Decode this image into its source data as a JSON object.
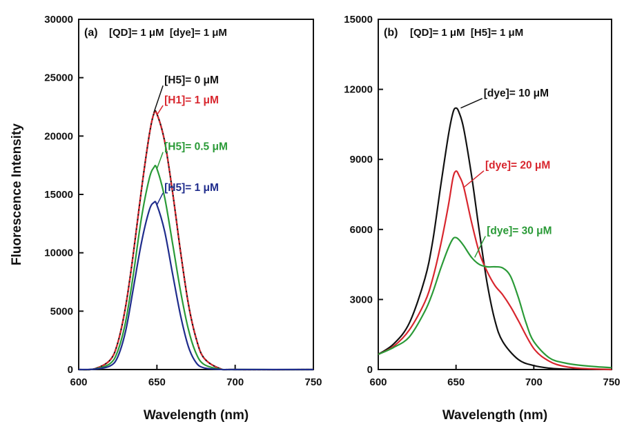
{
  "chart_data": [
    {
      "type": "line",
      "panel_label": "(a)",
      "condition": "[QD]= 1 μM  [dye]= 1 μM",
      "xlabel": "Wavelength (nm)",
      "ylabel": "Fluorescence Intensity",
      "xlim": [
        600,
        750
      ],
      "ylim": [
        0,
        30000
      ],
      "xticks": [
        "600",
        "650",
        "700",
        "750"
      ],
      "yticks": [
        "0",
        "5000",
        "10000",
        "15000",
        "20000",
        "25000",
        "30000"
      ],
      "grid": false,
      "series": [
        {
          "name": "[H5]= 0 μM",
          "color": "#111111",
          "x": [
            600,
            610,
            620,
            625,
            630,
            635,
            640,
            645,
            648,
            650,
            655,
            660,
            665,
            670,
            675,
            680,
            690,
            700,
            750
          ],
          "y": [
            0,
            60,
            800,
            2300,
            5400,
            10000,
            15300,
            20000,
            21900,
            21900,
            19500,
            15200,
            10200,
            5700,
            2700,
            1000,
            100,
            0,
            0
          ]
        },
        {
          "name": "[H1]= 1 μM",
          "color": "#d8262e",
          "x": [
            600,
            610,
            620,
            625,
            630,
            635,
            640,
            645,
            648,
            650,
            655,
            660,
            665,
            670,
            675,
            680,
            690,
            700,
            750
          ],
          "y": [
            0,
            60,
            800,
            2300,
            5400,
            10000,
            15300,
            20000,
            21900,
            21900,
            19500,
            15200,
            10200,
            5700,
            2700,
            1000,
            100,
            0,
            0
          ]
        },
        {
          "name": "[H5]= 0.5 μM",
          "color": "#2a9a37",
          "x": [
            600,
            610,
            620,
            625,
            630,
            635,
            640,
            645,
            648,
            650,
            655,
            660,
            665,
            670,
            675,
            680,
            690,
            700,
            750
          ],
          "y": [
            0,
            40,
            500,
            1600,
            4100,
            8200,
            12900,
            16300,
            17300,
            17200,
            14700,
            10800,
            6800,
            3500,
            1400,
            450,
            40,
            0,
            0
          ]
        },
        {
          "name": "[H5]= 1 μM",
          "color": "#1f2c8c",
          "x": [
            600,
            610,
            620,
            625,
            630,
            635,
            640,
            645,
            648,
            650,
            655,
            660,
            665,
            670,
            675,
            680,
            690,
            700,
            750
          ],
          "y": [
            0,
            30,
            300,
            1100,
            3300,
            7000,
            10800,
            13600,
            14300,
            14100,
            11800,
            8200,
            4700,
            2000,
            600,
            150,
            10,
            0,
            0
          ]
        }
      ],
      "annotations": [
        {
          "text": "[H5]= 0 μM",
          "color": "#111111",
          "x_at": 648,
          "y_at": 22000,
          "label_x": 653,
          "label_y": 24500
        },
        {
          "text": "[H1]= 1 μM",
          "color": "#d8262e",
          "x_at": 650,
          "y_at": 21800,
          "label_x": 653,
          "label_y": 22800
        },
        {
          "text": "[H5]= 0.5 μM",
          "color": "#2a9a37",
          "x_at": 650,
          "y_at": 17200,
          "label_x": 653,
          "label_y": 18800
        },
        {
          "text": "[H5]= 1 μM",
          "color": "#1f2c8c",
          "x_at": 650,
          "y_at": 14100,
          "label_x": 653,
          "label_y": 15300
        }
      ]
    },
    {
      "type": "line",
      "panel_label": "(b)",
      "condition": "[QD]= 1 μM  [H5]= 1 μM",
      "xlabel": "Wavelength (nm)",
      "ylabel": "",
      "xlim": [
        600,
        750
      ],
      "ylim": [
        0,
        15000
      ],
      "xticks": [
        "600",
        "650",
        "700",
        "750"
      ],
      "yticks": [
        "0",
        "3000",
        "6000",
        "9000",
        "12000",
        "15000"
      ],
      "grid": false,
      "series": [
        {
          "name": "[dye]= 10 μM",
          "color": "#111111",
          "x": [
            600,
            610,
            620,
            630,
            635,
            640,
            645,
            648,
            650,
            652,
            655,
            660,
            665,
            670,
            675,
            680,
            690,
            700,
            710,
            720,
            750
          ],
          "y": [
            650,
            1100,
            2000,
            3900,
            5500,
            7800,
            10000,
            11000,
            11200,
            11000,
            10300,
            8300,
            5900,
            3700,
            2100,
            1200,
            430,
            170,
            60,
            20,
            0
          ]
        },
        {
          "name": "[dye]= 20 μM",
          "color": "#d8262e",
          "x": [
            600,
            610,
            620,
            630,
            635,
            640,
            645,
            648,
            650,
            652,
            655,
            660,
            665,
            670,
            675,
            680,
            685,
            690,
            700,
            710,
            720,
            730,
            750
          ],
          "y": [
            650,
            1000,
            1700,
            2900,
            3900,
            5300,
            7000,
            8200,
            8500,
            8300,
            7800,
            6300,
            5000,
            4200,
            3600,
            3200,
            2700,
            2100,
            900,
            350,
            130,
            50,
            0
          ]
        },
        {
          "name": "[dye]= 30 μM",
          "color": "#2a9a37",
          "x": [
            600,
            610,
            620,
            630,
            635,
            640,
            645,
            648,
            650,
            652,
            655,
            660,
            665,
            670,
            675,
            680,
            685,
            690,
            695,
            700,
            710,
            720,
            730,
            740,
            750
          ],
          "y": [
            650,
            950,
            1400,
            2500,
            3300,
            4300,
            5200,
            5600,
            5650,
            5550,
            5300,
            4800,
            4500,
            4400,
            4400,
            4350,
            4000,
            3100,
            2000,
            1200,
            500,
            280,
            180,
            120,
            80
          ]
        }
      ],
      "annotations": [
        {
          "text": "[dye]= 10 μM",
          "color": "#111111",
          "x_at": 653,
          "y_at": 11200,
          "label_x": 666,
          "label_y": 11700
        },
        {
          "text": "[dye]= 20 μM",
          "color": "#d8262e",
          "x_at": 655,
          "y_at": 7800,
          "label_x": 667,
          "label_y": 8600
        },
        {
          "text": "[dye]= 30 μM",
          "color": "#2a9a37",
          "x_at": 662,
          "y_at": 4800,
          "label_x": 668,
          "label_y": 5800
        }
      ]
    }
  ]
}
